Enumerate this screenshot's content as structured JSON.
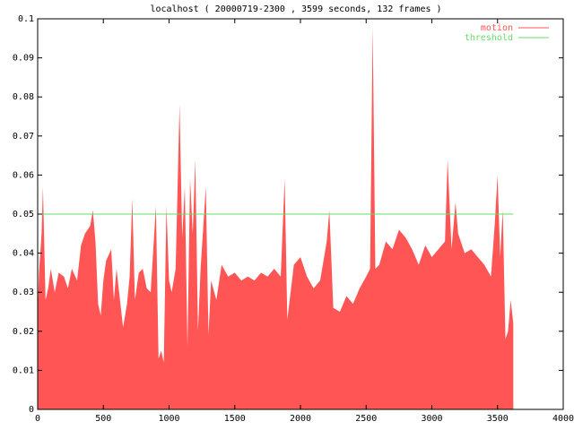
{
  "chart_data": {
    "type": "area",
    "title": "localhost ( 20000719-2300 , 3599 seconds, 132 frames )",
    "xlim": [
      0,
      4000
    ],
    "xticks": [
      0,
      500,
      1000,
      1500,
      2000,
      2500,
      3000,
      3500,
      4000
    ],
    "ylim": [
      0,
      0.1
    ],
    "yticks": [
      0,
      0.01,
      0.02,
      0.03,
      0.04,
      0.05,
      0.06,
      0.07,
      0.08,
      0.09,
      0.1
    ],
    "legend": "top-right",
    "series": [
      {
        "name": "motion",
        "color": "#ff5555",
        "style": "filled",
        "x": [
          0,
          10,
          30,
          40,
          60,
          80,
          100,
          130,
          160,
          200,
          230,
          260,
          300,
          330,
          360,
          400,
          420,
          440,
          460,
          480,
          500,
          520,
          560,
          580,
          600,
          620,
          650,
          680,
          700,
          720,
          740,
          770,
          800,
          830,
          860,
          900,
          920,
          940,
          960,
          980,
          1000,
          1020,
          1050,
          1080,
          1100,
          1120,
          1140,
          1160,
          1180,
          1200,
          1220,
          1240,
          1280,
          1300,
          1320,
          1360,
          1400,
          1450,
          1500,
          1550,
          1600,
          1650,
          1700,
          1750,
          1800,
          1850,
          1880,
          1900,
          1950,
          2000,
          2050,
          2100,
          2150,
          2200,
          2220,
          2250,
          2300,
          2350,
          2400,
          2450,
          2500,
          2530,
          2550,
          2570,
          2600,
          2650,
          2700,
          2750,
          2800,
          2850,
          2900,
          2950,
          3000,
          3050,
          3100,
          3120,
          3150,
          3180,
          3200,
          3250,
          3300,
          3350,
          3400,
          3450,
          3480,
          3500,
          3520,
          3540,
          3560,
          3580,
          3600,
          3620
        ],
        "values": [
          0.025,
          0.035,
          0.045,
          0.057,
          0.028,
          0.031,
          0.036,
          0.03,
          0.035,
          0.034,
          0.031,
          0.036,
          0.033,
          0.042,
          0.045,
          0.047,
          0.051,
          0.043,
          0.027,
          0.024,
          0.033,
          0.038,
          0.041,
          0.028,
          0.036,
          0.03,
          0.021,
          0.027,
          0.034,
          0.054,
          0.028,
          0.035,
          0.036,
          0.031,
          0.03,
          0.052,
          0.013,
          0.015,
          0.012,
          0.052,
          0.033,
          0.03,
          0.036,
          0.078,
          0.044,
          0.057,
          0.016,
          0.059,
          0.045,
          0.064,
          0.02,
          0.036,
          0.057,
          0.019,
          0.033,
          0.028,
          0.037,
          0.034,
          0.035,
          0.033,
          0.034,
          0.033,
          0.035,
          0.034,
          0.036,
          0.034,
          0.059,
          0.023,
          0.037,
          0.039,
          0.034,
          0.031,
          0.033,
          0.043,
          0.051,
          0.026,
          0.025,
          0.029,
          0.027,
          0.031,
          0.034,
          0.036,
          0.098,
          0.036,
          0.037,
          0.043,
          0.041,
          0.046,
          0.044,
          0.041,
          0.037,
          0.042,
          0.039,
          0.041,
          0.043,
          0.064,
          0.041,
          0.053,
          0.045,
          0.04,
          0.041,
          0.039,
          0.037,
          0.034,
          0.048,
          0.06,
          0.039,
          0.051,
          0.018,
          0.02,
          0.028,
          0.022
        ]
      },
      {
        "name": "threshold",
        "color": "#66dd66",
        "style": "line",
        "x": [
          0,
          3620
        ],
        "values": [
          0.05,
          0.05
        ]
      }
    ]
  }
}
